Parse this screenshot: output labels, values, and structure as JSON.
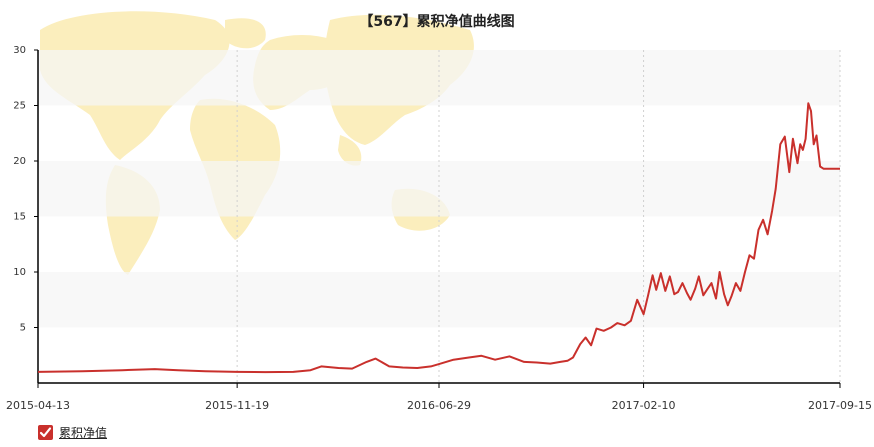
{
  "colors": {
    "line": "#c9302c",
    "band": "#f6f6f6",
    "map": "#fbeebd",
    "axis": "#000000",
    "grid": "#d0d0d0",
    "check": "#c9302c"
  },
  "legend": {
    "label": "累积净值",
    "checked": true,
    "icon": "check-icon"
  },
  "chart_data": {
    "type": "line",
    "title": "【567】累积净值曲线图",
    "xlabel": "",
    "ylabel": "",
    "ylim": [
      0,
      30
    ],
    "yticks": [
      "5",
      "10",
      "15",
      "20",
      "25",
      "30"
    ],
    "xticks": [
      "2015-04-13",
      "2015-11-19",
      "2016-06-29",
      "2017-02-10",
      "2017-09-15"
    ],
    "grid": true,
    "legend_position": "bottom-left",
    "series": [
      {
        "name": "累积净值",
        "x": [
          "2015-04-13",
          "2015-06-01",
          "2015-07-15",
          "2015-08-20",
          "2015-09-15",
          "2015-10-15",
          "2015-11-19",
          "2015-12-20",
          "2016-01-20",
          "2016-02-08",
          "2016-02-20",
          "2016-03-10",
          "2016-03-25",
          "2016-04-10",
          "2016-04-20",
          "2016-05-05",
          "2016-05-20",
          "2016-06-05",
          "2016-06-20",
          "2016-06-29",
          "2016-07-15",
          "2016-08-01",
          "2016-08-15",
          "2016-08-30",
          "2016-09-15",
          "2016-10-01",
          "2016-10-15",
          "2016-10-30",
          "2016-11-10",
          "2016-11-18",
          "2016-11-24",
          "2016-12-02",
          "2016-12-08",
          "2016-12-14",
          "2016-12-20",
          "2016-12-28",
          "2017-01-05",
          "2017-01-12",
          "2017-01-20",
          "2017-01-27",
          "2017-02-03",
          "2017-02-10",
          "2017-02-15",
          "2017-02-20",
          "2017-02-24",
          "2017-03-01",
          "2017-03-06",
          "2017-03-11",
          "2017-03-16",
          "2017-03-20",
          "2017-03-25",
          "2017-03-30",
          "2017-04-03",
          "2017-04-08",
          "2017-04-12",
          "2017-04-17",
          "2017-04-21",
          "2017-04-26",
          "2017-05-01",
          "2017-05-05",
          "2017-05-10",
          "2017-05-14",
          "2017-05-18",
          "2017-05-23",
          "2017-05-28",
          "2017-06-02",
          "2017-06-07",
          "2017-06-12",
          "2017-06-17",
          "2017-06-22",
          "2017-06-27",
          "2017-07-02",
          "2017-07-06",
          "2017-07-11",
          "2017-07-16",
          "2017-07-21",
          "2017-07-25",
          "2017-07-30",
          "2017-08-02",
          "2017-08-05",
          "2017-08-08",
          "2017-08-11",
          "2017-08-14",
          "2017-08-17",
          "2017-08-20",
          "2017-08-24",
          "2017-08-28",
          "2017-09-01",
          "2017-09-04",
          "2017-09-07",
          "2017-09-10",
          "2017-09-13",
          "2017-09-15"
        ],
        "values": [
          1.0,
          1.05,
          1.15,
          1.25,
          1.15,
          1.05,
          1.0,
          0.98,
          1.0,
          1.15,
          1.5,
          1.35,
          1.3,
          1.9,
          2.2,
          1.5,
          1.4,
          1.35,
          1.5,
          1.7,
          2.1,
          2.3,
          2.45,
          2.1,
          2.4,
          1.9,
          1.85,
          1.75,
          1.9,
          2.0,
          2.3,
          3.5,
          4.1,
          3.4,
          4.9,
          4.7,
          5.0,
          5.4,
          5.2,
          5.6,
          7.5,
          6.2,
          7.9,
          9.7,
          8.4,
          9.9,
          8.3,
          9.6,
          8.0,
          8.2,
          9.0,
          8.1,
          7.5,
          8.5,
          9.6,
          7.9,
          8.4,
          9.0,
          7.6,
          10.0,
          8.0,
          7.0,
          7.8,
          9.0,
          8.3,
          10.0,
          11.5,
          11.2,
          13.8,
          14.7,
          13.4,
          15.5,
          17.5,
          21.5,
          22.2,
          19.0,
          22.0,
          19.8,
          21.5,
          21.0,
          22.0,
          25.2,
          24.5,
          21.5,
          22.3,
          19.5,
          19.3,
          19.3,
          19.3,
          19.3,
          19.3,
          19.3,
          19.3
        ]
      }
    ]
  }
}
